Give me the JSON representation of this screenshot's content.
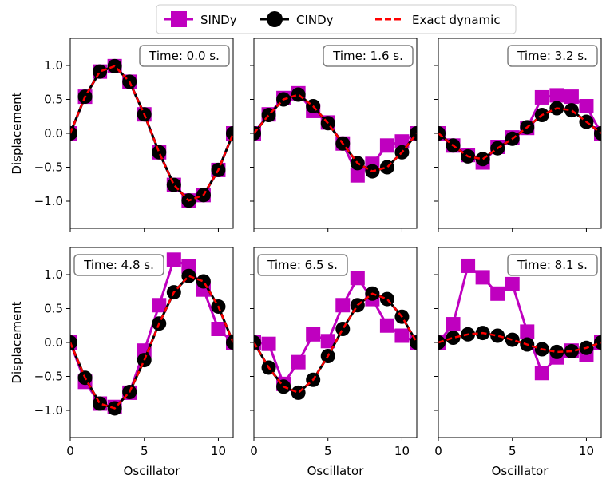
{
  "chart_data": {
    "type": "line",
    "xlabel": "Oscillator",
    "ylabel": "Displacement",
    "xlim": [
      0,
      11
    ],
    "ylim": [
      -1.4,
      1.4
    ],
    "xticks": [
      0,
      5,
      10
    ],
    "yticks": [
      -1.0,
      -0.5,
      0.0,
      0.5,
      1.0
    ],
    "xtick_labels": [
      "0",
      "5",
      "10"
    ],
    "ytick_labels": [
      "−1.0",
      "−0.5",
      "0.0",
      "0.5",
      "1.0"
    ],
    "legend": {
      "position": "top-center",
      "entries": [
        {
          "name": "SINDy",
          "color": "#bf00bf",
          "marker": "square"
        },
        {
          "name": "CINDy",
          "color": "#000000",
          "marker": "circle"
        },
        {
          "name": "Exact dynamic",
          "color": "#ff0000",
          "style": "dashed"
        }
      ]
    },
    "panels": [
      {
        "label": "Time: 0.0 s.",
        "x": [
          0,
          1,
          2,
          3,
          4,
          5,
          6,
          7,
          8,
          9,
          10,
          11
        ],
        "series": [
          {
            "name": "SINDy",
            "values": [
              0,
              0.54,
              0.91,
              0.99,
              0.76,
              0.28,
              -0.28,
              -0.76,
              -0.99,
              -0.91,
              -0.54,
              0
            ]
          },
          {
            "name": "CINDy",
            "values": [
              0,
              0.54,
              0.91,
              0.99,
              0.76,
              0.28,
              -0.28,
              -0.76,
              -0.99,
              -0.91,
              -0.54,
              0
            ]
          },
          {
            "name": "Exact dynamic",
            "values": [
              0,
              0.54,
              0.91,
              0.99,
              0.76,
              0.28,
              -0.28,
              -0.76,
              -0.99,
              -0.91,
              -0.54,
              0
            ]
          }
        ]
      },
      {
        "label": "Time: 1.6 s.",
        "x": [
          0,
          1,
          2,
          3,
          4,
          5,
          6,
          7,
          8,
          9,
          10,
          11
        ],
        "series": [
          {
            "name": "SINDy",
            "values": [
              0,
              0.28,
              0.52,
              0.59,
              0.33,
              0.16,
              -0.15,
              -0.62,
              -0.45,
              -0.18,
              -0.12,
              0
            ]
          },
          {
            "name": "CINDy",
            "values": [
              0,
              0.27,
              0.5,
              0.57,
              0.4,
              0.15,
              -0.15,
              -0.44,
              -0.56,
              -0.5,
              -0.28,
              0
            ]
          },
          {
            "name": "Exact dynamic",
            "values": [
              0,
              0.27,
              0.5,
              0.57,
              0.4,
              0.15,
              -0.15,
              -0.44,
              -0.56,
              -0.5,
              -0.28,
              0
            ]
          }
        ]
      },
      {
        "label": "Time: 3.2 s.",
        "x": [
          0,
          1,
          2,
          3,
          4,
          5,
          6,
          7,
          8,
          9,
          10,
          11
        ],
        "series": [
          {
            "name": "SINDy",
            "values": [
              0,
              -0.18,
              -0.32,
              -0.43,
              -0.2,
              -0.06,
              0.08,
              0.53,
              0.56,
              0.54,
              0.4,
              0
            ]
          },
          {
            "name": "CINDy",
            "values": [
              0,
              -0.18,
              -0.34,
              -0.38,
              -0.22,
              -0.08,
              0.09,
              0.27,
              0.37,
              0.34,
              0.17,
              0
            ]
          },
          {
            "name": "Exact dynamic",
            "values": [
              0,
              -0.18,
              -0.34,
              -0.38,
              -0.22,
              -0.08,
              0.09,
              0.27,
              0.37,
              0.34,
              0.17,
              0
            ]
          }
        ]
      },
      {
        "label": "Time: 4.8 s.",
        "x": [
          0,
          1,
          2,
          3,
          4,
          5,
          6,
          7,
          8,
          9,
          10,
          11
        ],
        "series": [
          {
            "name": "SINDy",
            "values": [
              0,
              -0.58,
              -0.9,
              -0.95,
              -0.74,
              -0.12,
              0.55,
              1.22,
              1.12,
              0.78,
              0.2,
              0
            ]
          },
          {
            "name": "CINDy",
            "values": [
              0,
              -0.52,
              -0.9,
              -0.97,
              -0.73,
              -0.26,
              0.28,
              0.74,
              0.98,
              0.9,
              0.53,
              0
            ]
          },
          {
            "name": "Exact dynamic",
            "values": [
              0,
              -0.52,
              -0.9,
              -0.97,
              -0.73,
              -0.26,
              0.28,
              0.74,
              0.98,
              0.9,
              0.53,
              0
            ]
          }
        ]
      },
      {
        "label": "Time: 6.5 s.",
        "x": [
          0,
          1,
          2,
          3,
          4,
          5,
          6,
          7,
          8,
          9,
          10,
          11
        ],
        "series": [
          {
            "name": "SINDy",
            "values": [
              0,
              -0.02,
              -0.61,
              -0.29,
              0.12,
              0.02,
              0.55,
              0.95,
              0.64,
              0.25,
              0.1,
              0
            ]
          },
          {
            "name": "CINDy",
            "values": [
              0,
              -0.37,
              -0.65,
              -0.74,
              -0.55,
              -0.2,
              0.2,
              0.55,
              0.72,
              0.64,
              0.38,
              0
            ]
          },
          {
            "name": "Exact dynamic",
            "values": [
              0,
              -0.37,
              -0.65,
              -0.74,
              -0.55,
              -0.2,
              0.2,
              0.55,
              0.72,
              0.64,
              0.38,
              0
            ]
          }
        ]
      },
      {
        "label": "Time: 8.1 s.",
        "x": [
          0,
          1,
          2,
          3,
          4,
          5,
          6,
          7,
          8,
          9,
          10,
          11
        ],
        "series": [
          {
            "name": "SINDy",
            "values": [
              0,
              0.27,
              1.13,
              0.96,
              0.72,
              0.86,
              0.16,
              -0.45,
              -0.22,
              -0.12,
              -0.18,
              0
            ]
          },
          {
            "name": "CINDy",
            "values": [
              0,
              0.07,
              0.12,
              0.14,
              0.1,
              0.04,
              -0.03,
              -0.1,
              -0.14,
              -0.13,
              -0.08,
              0
            ]
          },
          {
            "name": "Exact dynamic",
            "values": [
              0,
              0.07,
              0.12,
              0.14,
              0.1,
              0.04,
              -0.03,
              -0.1,
              -0.14,
              -0.13,
              -0.08,
              0
            ]
          }
        ]
      }
    ]
  }
}
